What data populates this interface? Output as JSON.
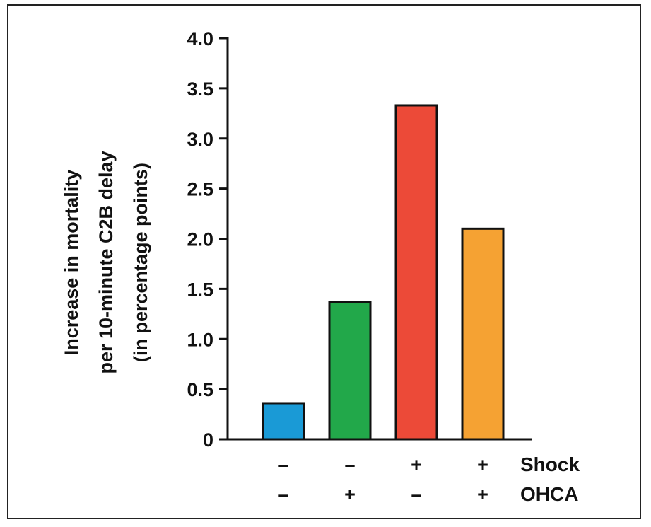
{
  "chart_data": {
    "type": "bar",
    "ylabel_lines": [
      "Increase in mortality",
      "per 10-minute C2B delay",
      "(in percentage points)"
    ],
    "ylim": [
      0,
      4.0
    ],
    "yticks": [
      {
        "value": 0,
        "label": "0"
      },
      {
        "value": 0.5,
        "label": "0.5"
      },
      {
        "value": 1.0,
        "label": "1.0"
      },
      {
        "value": 1.5,
        "label": "1.5"
      },
      {
        "value": 2.0,
        "label": "2.0"
      },
      {
        "value": 2.5,
        "label": "2.5"
      },
      {
        "value": 3.0,
        "label": "3.0"
      },
      {
        "value": 3.5,
        "label": "3.5"
      },
      {
        "value": 4.0,
        "label": "4.0"
      }
    ],
    "bars": [
      {
        "value": 0.36,
        "color": "#1a9ad6",
        "shock": "–",
        "ohca": "–"
      },
      {
        "value": 1.37,
        "color": "#22a84a",
        "shock": "–",
        "ohca": "+"
      },
      {
        "value": 3.33,
        "color": "#ec4a38",
        "shock": "+",
        "ohca": "–"
      },
      {
        "value": 2.1,
        "color": "#f5a233",
        "shock": "+",
        "ohca": "+"
      }
    ],
    "row_labels": [
      "Shock",
      "OHCA"
    ],
    "grid": false
  }
}
